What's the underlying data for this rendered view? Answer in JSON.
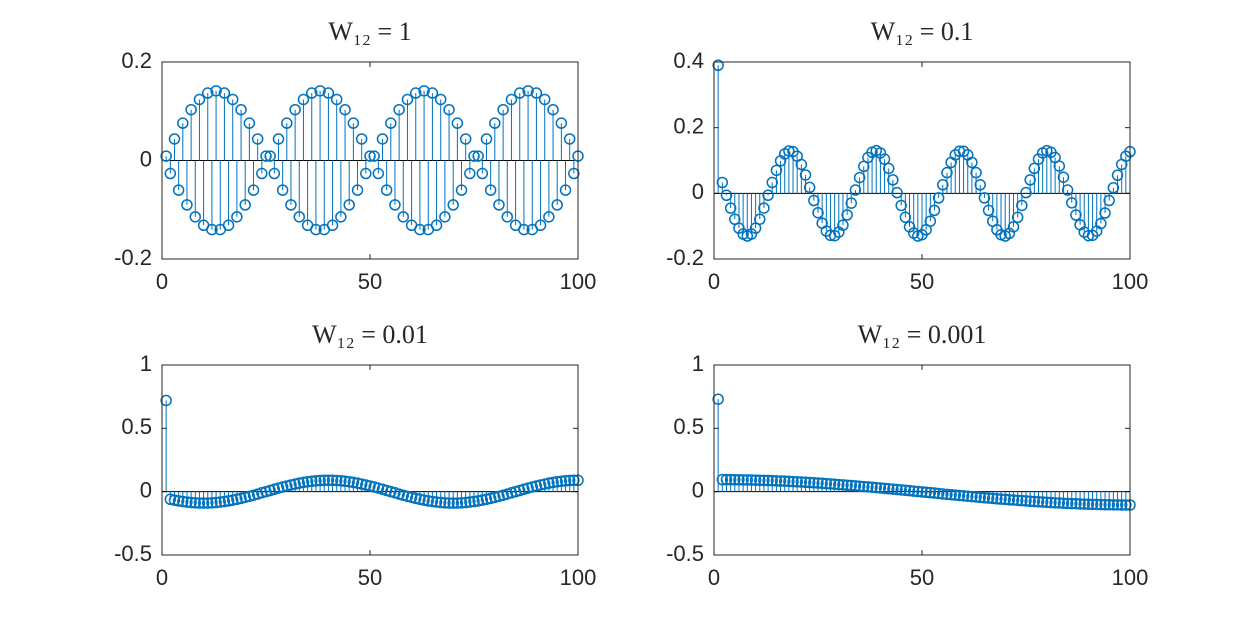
{
  "chart_data": [
    {
      "type": "stem",
      "title": "W₁₂ = 1",
      "color": "#0072bd",
      "x": [
        1,
        2,
        3,
        4,
        5,
        6,
        7,
        8,
        9,
        10,
        11,
        12,
        13,
        14,
        15,
        16,
        17,
        18,
        19,
        20,
        21,
        22,
        23,
        24,
        25,
        26,
        27,
        28,
        29,
        30,
        31,
        32,
        33,
        34,
        35,
        36,
        37,
        38,
        39,
        40,
        41,
        42,
        43,
        44,
        45,
        46,
        47,
        48,
        49,
        50,
        51,
        52,
        53,
        54,
        55,
        56,
        57,
        58,
        59,
        60,
        61,
        62,
        63,
        64,
        65,
        66,
        67,
        68,
        69,
        70,
        71,
        72,
        73,
        74,
        75,
        76,
        77,
        78,
        79,
        80,
        81,
        82,
        83,
        84,
        85,
        86,
        87,
        88,
        89,
        90,
        91,
        92,
        93,
        94,
        95,
        96,
        97,
        98,
        99,
        100
      ],
      "values": [
        0.0089,
        -0.0265,
        0.0437,
        -0.0602,
        0.0758,
        -0.0901,
        0.1031,
        -0.1144,
        0.1239,
        -0.1315,
        0.137,
        -0.1403,
        0.1414,
        -0.1403,
        0.137,
        -0.1315,
        0.1239,
        -0.1144,
        0.1031,
        -0.0901,
        0.0758,
        -0.0602,
        0.0437,
        -0.0265,
        0.0089,
        0.0089,
        -0.0265,
        0.0437,
        -0.0602,
        0.0758,
        -0.0901,
        0.1031,
        -0.1144,
        0.1239,
        -0.1315,
        0.137,
        -0.1403,
        0.1414,
        -0.1403,
        0.137,
        -0.1315,
        0.1239,
        -0.1144,
        0.1031,
        -0.0901,
        0.0758,
        -0.0602,
        0.0437,
        -0.0265,
        0.0089,
        0.0089,
        -0.0265,
        0.0437,
        -0.0602,
        0.0758,
        -0.0901,
        0.1031,
        -0.1144,
        0.1239,
        -0.1315,
        0.137,
        -0.1403,
        0.1414,
        -0.1403,
        0.137,
        -0.1315,
        0.1239,
        -0.1144,
        0.1031,
        -0.0901,
        0.0758,
        -0.0602,
        0.0437,
        -0.0265,
        0.0089,
        0.0089,
        -0.0265,
        0.0437,
        -0.0602,
        0.0758,
        -0.0901,
        0.1031,
        -0.1144,
        0.1239,
        -0.1315,
        0.137,
        -0.1403,
        0.1414,
        -0.1403,
        0.137,
        -0.1315,
        0.1239,
        -0.1144,
        0.1031,
        -0.0901,
        0.0758,
        -0.0602,
        0.0437,
        -0.0265,
        0.0089
      ],
      "xlim": [
        0,
        100
      ],
      "xticks": [
        0,
        50,
        100
      ],
      "ylim": [
        -0.2,
        0.2
      ],
      "yticks": [
        -0.2,
        0,
        0.2
      ]
    },
    {
      "type": "stem",
      "title": "W₁₂ = 0.1",
      "color": "#0072bd",
      "x": [
        1,
        2,
        3,
        4,
        5,
        6,
        7,
        8,
        9,
        10,
        11,
        12,
        13,
        14,
        15,
        16,
        17,
        18,
        19,
        20,
        21,
        22,
        23,
        24,
        25,
        26,
        27,
        28,
        29,
        30,
        31,
        32,
        33,
        34,
        35,
        36,
        37,
        38,
        39,
        40,
        41,
        42,
        43,
        44,
        45,
        46,
        47,
        48,
        49,
        50,
        51,
        52,
        53,
        54,
        55,
        56,
        57,
        58,
        59,
        60,
        61,
        62,
        63,
        64,
        65,
        66,
        67,
        68,
        69,
        70,
        71,
        72,
        73,
        74,
        75,
        76,
        77,
        78,
        79,
        80,
        81,
        82,
        83,
        84,
        85,
        86,
        87,
        88,
        89,
        90,
        91,
        92,
        93,
        94,
        95,
        96,
        97,
        98,
        99,
        100
      ],
      "values": [
        0.39,
        0.033,
        -0.006,
        -0.045,
        -0.079,
        -0.106,
        -0.124,
        -0.13,
        -0.124,
        -0.106,
        -0.079,
        -0.045,
        -0.006,
        0.033,
        0.07,
        0.099,
        0.12,
        0.129,
        0.127,
        0.113,
        0.088,
        0.056,
        0.018,
        -0.022,
        -0.059,
        -0.091,
        -0.115,
        -0.128,
        -0.129,
        -0.118,
        -0.097,
        -0.066,
        -0.03,
        0.01,
        0.048,
        0.082,
        0.109,
        0.125,
        0.13,
        0.123,
        0.104,
        0.076,
        0.041,
        0.002,
        -0.037,
        -0.073,
        -0.102,
        -0.121,
        -0.13,
        -0.126,
        -0.111,
        -0.085,
        -0.052,
        -0.014,
        0.026,
        0.063,
        0.094,
        0.117,
        0.128,
        0.128,
        0.117,
        0.094,
        0.063,
        0.026,
        -0.014,
        -0.052,
        -0.085,
        -0.111,
        -0.126,
        -0.13,
        -0.122,
        -0.102,
        -0.073,
        -0.037,
        0.002,
        0.041,
        0.076,
        0.104,
        0.123,
        0.13,
        0.125,
        0.109,
        0.083,
        0.049,
        0.01,
        -0.029,
        -0.066,
        -0.096,
        -0.118,
        -0.129,
        -0.128,
        -0.115,
        -0.092,
        -0.06,
        -0.022,
        0.017,
        0.055,
        0.088,
        0.113,
        0.127
      ],
      "xlim": [
        0,
        100
      ],
      "xticks": [
        0,
        50,
        100
      ],
      "ylim": [
        -0.2,
        0.4
      ],
      "yticks": [
        -0.2,
        0,
        0.2,
        0.4
      ]
    },
    {
      "type": "stem",
      "title": "W₁₂ = 0.01",
      "color": "#0072bd",
      "x": [
        1,
        2,
        3,
        4,
        5,
        6,
        7,
        8,
        9,
        10,
        11,
        12,
        13,
        14,
        15,
        16,
        17,
        18,
        19,
        20,
        21,
        22,
        23,
        24,
        25,
        26,
        27,
        28,
        29,
        30,
        31,
        32,
        33,
        34,
        35,
        36,
        37,
        38,
        39,
        40,
        41,
        42,
        43,
        44,
        45,
        46,
        47,
        48,
        49,
        50,
        51,
        52,
        53,
        54,
        55,
        56,
        57,
        58,
        59,
        60,
        61,
        62,
        63,
        64,
        65,
        66,
        67,
        68,
        69,
        70,
        71,
        72,
        73,
        74,
        75,
        76,
        77,
        78,
        79,
        80,
        81,
        82,
        83,
        84,
        85,
        86,
        87,
        88,
        89,
        90,
        91,
        92,
        93,
        94,
        95,
        96,
        97,
        98,
        99,
        100
      ],
      "values": [
        0.72,
        -0.06,
        -0.067,
        -0.073,
        -0.078,
        -0.082,
        -0.086,
        -0.088,
        -0.09,
        -0.09,
        -0.09,
        -0.088,
        -0.086,
        -0.082,
        -0.078,
        -0.073,
        -0.067,
        -0.06,
        -0.053,
        -0.045,
        -0.037,
        -0.028,
        -0.019,
        -0.009,
        0,
        0.009,
        0.019,
        0.028,
        0.037,
        0.045,
        0.053,
        0.06,
        0.067,
        0.073,
        0.078,
        0.082,
        0.086,
        0.088,
        0.09,
        0.09,
        0.09,
        0.088,
        0.086,
        0.082,
        0.078,
        0.073,
        0.067,
        0.06,
        0.053,
        0.045,
        0.037,
        0.028,
        0.019,
        0.009,
        0,
        -0.009,
        -0.019,
        -0.028,
        -0.037,
        -0.045,
        -0.053,
        -0.06,
        -0.067,
        -0.073,
        -0.078,
        -0.082,
        -0.086,
        -0.088,
        -0.09,
        -0.09,
        -0.09,
        -0.088,
        -0.086,
        -0.082,
        -0.078,
        -0.073,
        -0.067,
        -0.06,
        -0.053,
        -0.045,
        -0.037,
        -0.028,
        -0.019,
        -0.009,
        0,
        0.009,
        0.019,
        0.028,
        0.037,
        0.045,
        0.053,
        0.06,
        0.067,
        0.073,
        0.078,
        0.082,
        0.086,
        0.088,
        0.09,
        0.09
      ],
      "xlim": [
        0,
        100
      ],
      "xticks": [
        0,
        50,
        100
      ],
      "ylim": [
        -0.5,
        1
      ],
      "yticks": [
        -0.5,
        0,
        0.5,
        1
      ]
    },
    {
      "type": "stem",
      "title": "W₁₂ = 0.001",
      "color": "#0072bd",
      "x": [
        1,
        2,
        3,
        4,
        5,
        6,
        7,
        8,
        9,
        10,
        11,
        12,
        13,
        14,
        15,
        16,
        17,
        18,
        19,
        20,
        21,
        22,
        23,
        24,
        25,
        26,
        27,
        28,
        29,
        30,
        31,
        32,
        33,
        34,
        35,
        36,
        37,
        38,
        39,
        40,
        41,
        42,
        43,
        44,
        45,
        46,
        47,
        48,
        49,
        50,
        51,
        52,
        53,
        54,
        55,
        56,
        57,
        58,
        59,
        60,
        61,
        62,
        63,
        64,
        65,
        66,
        67,
        68,
        69,
        70,
        71,
        72,
        73,
        74,
        75,
        76,
        77,
        78,
        79,
        80,
        81,
        82,
        83,
        84,
        85,
        86,
        87,
        88,
        89,
        90,
        91,
        92,
        93,
        94,
        95,
        96,
        97,
        98,
        99,
        100
      ],
      "values": [
        0.73,
        0.095,
        0.095,
        0.095,
        0.094,
        0.094,
        0.093,
        0.093,
        0.092,
        0.091,
        0.09,
        0.089,
        0.088,
        0.087,
        0.085,
        0.084,
        0.083,
        0.081,
        0.079,
        0.078,
        0.076,
        0.074,
        0.072,
        0.07,
        0.068,
        0.066,
        0.063,
        0.061,
        0.059,
        0.056,
        0.054,
        0.051,
        0.049,
        0.046,
        0.043,
        0.04,
        0.038,
        0.035,
        0.032,
        0.029,
        0.026,
        0.023,
        0.02,
        0.017,
        0.014,
        0.011,
        0.008,
        0.004,
        0.001,
        -0.002,
        -0.005,
        -0.008,
        -0.011,
        -0.014,
        -0.018,
        -0.021,
        -0.024,
        -0.027,
        -0.03,
        -0.033,
        -0.036,
        -0.039,
        -0.042,
        -0.045,
        -0.048,
        -0.05,
        -0.053,
        -0.056,
        -0.059,
        -0.061,
        -0.064,
        -0.066,
        -0.069,
        -0.071,
        -0.073,
        -0.076,
        -0.078,
        -0.08,
        -0.082,
        -0.084,
        -0.086,
        -0.088,
        -0.089,
        -0.091,
        -0.093,
        -0.094,
        -0.095,
        -0.097,
        -0.098,
        -0.099,
        -0.1,
        -0.101,
        -0.102,
        -0.103,
        -0.103,
        -0.104,
        -0.104,
        -0.105,
        -0.105,
        -0.105
      ],
      "xlim": [
        0,
        100
      ],
      "xticks": [
        0,
        50,
        100
      ],
      "ylim": [
        -0.5,
        1
      ],
      "yticks": [
        -0.5,
        0,
        0.5,
        1
      ]
    }
  ]
}
